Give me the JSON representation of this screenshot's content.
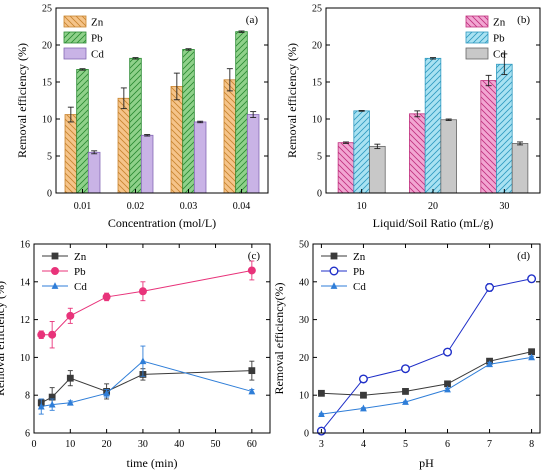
{
  "chart_data": [
    {
      "panel_label": "(a)",
      "type": "bar",
      "xlabel": "Concentration (mol/L)",
      "ylabel": "Removal efficiency (%)",
      "categories": [
        "0.01",
        "0.02",
        "0.03",
        "0.04"
      ],
      "ylim": [
        0,
        25
      ],
      "yticks": [
        "0",
        "5",
        "10",
        "15",
        "20",
        "25"
      ],
      "legend_position": "top-left",
      "series": [
        {
          "name": "Zn",
          "values": [
            10.6,
            12.8,
            14.4,
            15.3
          ],
          "errors": [
            1.0,
            1.4,
            1.8,
            1.5
          ],
          "color": "#f5c48a",
          "edge": "#c8842e"
        },
        {
          "name": "Pb",
          "values": [
            16.7,
            18.2,
            19.4,
            21.8
          ],
          "errors": [
            0.1,
            0.1,
            0.1,
            0.1
          ],
          "color": "#8fd18a",
          "edge": "#2a8a32"
        },
        {
          "name": "Cd",
          "values": [
            5.5,
            7.8,
            9.6,
            10.6
          ],
          "errors": [
            0.2,
            0.1,
            0.1,
            0.4
          ],
          "color": "#c9b3e6",
          "edge": "#8468b4"
        }
      ]
    },
    {
      "panel_label": "(b)",
      "type": "bar",
      "xlabel": "Liquid/Soil Ratio (mL/g)",
      "ylabel": "Removal efficiency (%)",
      "categories": [
        "10",
        "20",
        "30"
      ],
      "ylim": [
        0,
        25
      ],
      "yticks": [
        "0",
        "5",
        "10",
        "15",
        "20",
        "25"
      ],
      "legend_position": "top-right",
      "series": [
        {
          "name": "Zn",
          "values": [
            6.8,
            10.7,
            15.2
          ],
          "errors": [
            0.1,
            0.4,
            0.7
          ],
          "color": "#f2a6d2",
          "edge": "#c0307e"
        },
        {
          "name": "Pb",
          "values": [
            11.1,
            18.2,
            17.4
          ],
          "errors": [
            0.05,
            0.1,
            1.4
          ],
          "color": "#a9e2f2",
          "edge": "#2f9ac0"
        },
        {
          "name": "Cd",
          "values": [
            6.3,
            9.9,
            6.7
          ],
          "errors": [
            0.3,
            0.1,
            0.2
          ],
          "color": "#c8c8c8",
          "edge": "#666666"
        }
      ]
    },
    {
      "panel_label": "(c)",
      "type": "line",
      "xlabel": "time (min)",
      "ylabel": "Removal efficiency (%)",
      "xlim": [
        0,
        65
      ],
      "xticks": [
        "0",
        "10",
        "20",
        "30",
        "40",
        "50",
        "60"
      ],
      "ylim": [
        6,
        16
      ],
      "yticks": [
        "6",
        "8",
        "10",
        "12",
        "14",
        "16"
      ],
      "legend_position": "top-left",
      "series": [
        {
          "name": "Zn",
          "marker": "square",
          "color": "#3a3a3a",
          "x": [
            2,
            5,
            10,
            20,
            30,
            60
          ],
          "y": [
            7.6,
            7.9,
            8.9,
            8.2,
            9.1,
            9.3
          ],
          "errors": [
            0.2,
            0.5,
            0.4,
            0.4,
            0.3,
            0.5
          ]
        },
        {
          "name": "Pb",
          "marker": "circle",
          "color": "#e8337a",
          "x": [
            2,
            5,
            10,
            20,
            30,
            60
          ],
          "y": [
            11.2,
            11.2,
            12.2,
            13.2,
            13.5,
            14.6
          ],
          "errors": [
            0.2,
            0.7,
            0.4,
            0.2,
            0.5,
            0.5
          ]
        },
        {
          "name": "Cd",
          "marker": "triangle",
          "color": "#2f7ed8",
          "x": [
            2,
            5,
            10,
            20,
            30,
            60
          ],
          "y": [
            7.4,
            7.5,
            7.6,
            8.1,
            9.8,
            8.2
          ],
          "errors": [
            0.4,
            0.3,
            0.1,
            0.2,
            0.8,
            0.1
          ]
        }
      ]
    },
    {
      "panel_label": "(d)",
      "type": "line",
      "xlabel": "pH",
      "ylabel": "Removal efficiency(%)",
      "xlim": [
        2.8,
        8.2
      ],
      "xticks": [
        "3",
        "4",
        "5",
        "6",
        "7",
        "8"
      ],
      "ylim": [
        0,
        50
      ],
      "yticks": [
        "0",
        "10",
        "20",
        "30",
        "40",
        "50"
      ],
      "legend_position": "top-left",
      "series": [
        {
          "name": "Zn",
          "marker": "square",
          "color": "#3a3a3a",
          "x": [
            3,
            4,
            5,
            6,
            7,
            8
          ],
          "y": [
            10.5,
            10.0,
            11.0,
            13.0,
            19.0,
            21.5
          ],
          "errors": [
            0.2,
            0.2,
            0.2,
            0.3,
            0.5,
            0.3
          ]
        },
        {
          "name": "Pb",
          "marker": "open-circle",
          "color": "#1f2fc8",
          "x": [
            3,
            4,
            5,
            6,
            7,
            8
          ],
          "y": [
            0.5,
            14.3,
            17.0,
            21.4,
            38.5,
            40.8
          ],
          "errors": [
            0.3,
            0.3,
            0.3,
            0.4,
            1.0,
            0.4
          ]
        },
        {
          "name": "Cd",
          "marker": "triangle",
          "color": "#2f7ed8",
          "x": [
            3,
            4,
            5,
            6,
            7,
            8
          ],
          "y": [
            5.0,
            6.5,
            8.2,
            11.5,
            18.2,
            20.0
          ],
          "errors": [
            0.2,
            0.2,
            0.2,
            0.3,
            0.5,
            0.3
          ]
        }
      ]
    }
  ]
}
